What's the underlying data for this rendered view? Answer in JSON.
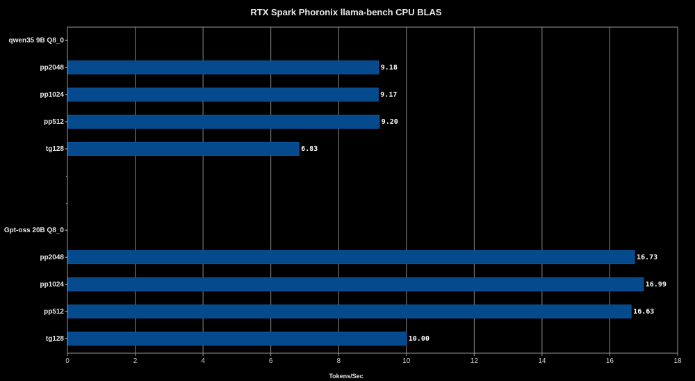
{
  "chart_data": {
    "type": "bar",
    "orientation": "horizontal",
    "title": "RTX Spark Phoronix llama-bench CPU BLAS",
    "xlabel": "Tokens/Sec",
    "ylabel": "",
    "xlim": [
      0,
      18
    ],
    "xticks": [
      0,
      2,
      4,
      6,
      8,
      10,
      12,
      14,
      16,
      18
    ],
    "grid": true,
    "bar_color": "#044a8d",
    "background": "#000000",
    "groups": [
      {
        "name": "qwen35 9B Q8_0",
        "categories": [
          "pp2048",
          "pp1024",
          "pp512",
          "tg128"
        ],
        "values": [
          9.18,
          9.17,
          9.2,
          6.83
        ],
        "value_labels": [
          "9.18",
          "9.17",
          "9.20",
          "6.83"
        ]
      },
      {
        "name": "Gpt-oss 20B Q8_0",
        "categories": [
          "pp2048",
          "pp1024",
          "pp512",
          "tg128"
        ],
        "values": [
          16.73,
          16.99,
          16.63,
          10.0
        ],
        "value_labels": [
          "16.73",
          "16.99",
          "16.63",
          "10.00"
        ]
      }
    ]
  }
}
